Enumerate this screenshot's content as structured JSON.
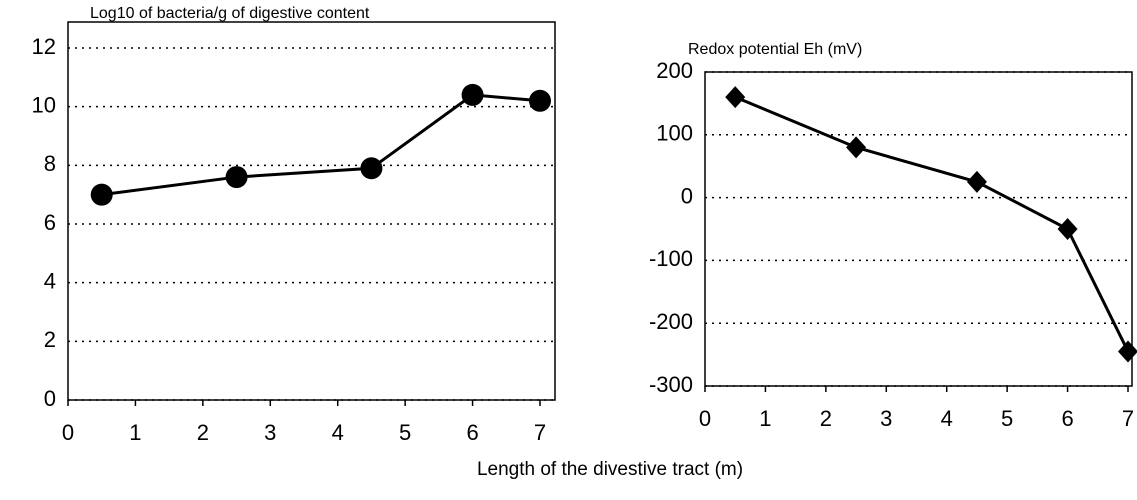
{
  "chart_data": [
    {
      "type": "line",
      "title": "Log10 of bacteria/g of digestive content",
      "x": [
        0.5,
        2.5,
        4.5,
        6,
        7
      ],
      "series": [
        {
          "color": "#000000",
          "marker": "circle",
          "values": [
            7.0,
            7.6,
            7.9,
            10.4,
            10.2
          ]
        }
      ],
      "xlim": [
        0,
        7
      ],
      "xticks": [
        0,
        1,
        2,
        3,
        4,
        5,
        6,
        7
      ],
      "ylim": [
        0,
        12
      ],
      "yticks": [
        0,
        2,
        4,
        6,
        8,
        10,
        12
      ],
      "grid": true
    },
    {
      "type": "line",
      "title": "Redox potential Eh (mV)",
      "x": [
        0.5,
        2.5,
        4.5,
        6,
        7
      ],
      "series": [
        {
          "color": "#000000",
          "marker": "diamond",
          "values": [
            160,
            80,
            25,
            -50,
            -245
          ]
        }
      ],
      "xlim": [
        0,
        7
      ],
      "xticks": [
        0,
        1,
        2,
        3,
        4,
        5,
        6,
        7
      ],
      "ylim": [
        -300,
        200
      ],
      "yticks": [
        -300,
        -200,
        -100,
        0,
        100,
        200
      ],
      "grid": true
    }
  ],
  "x_label": "Length of the divestive tract (m)"
}
